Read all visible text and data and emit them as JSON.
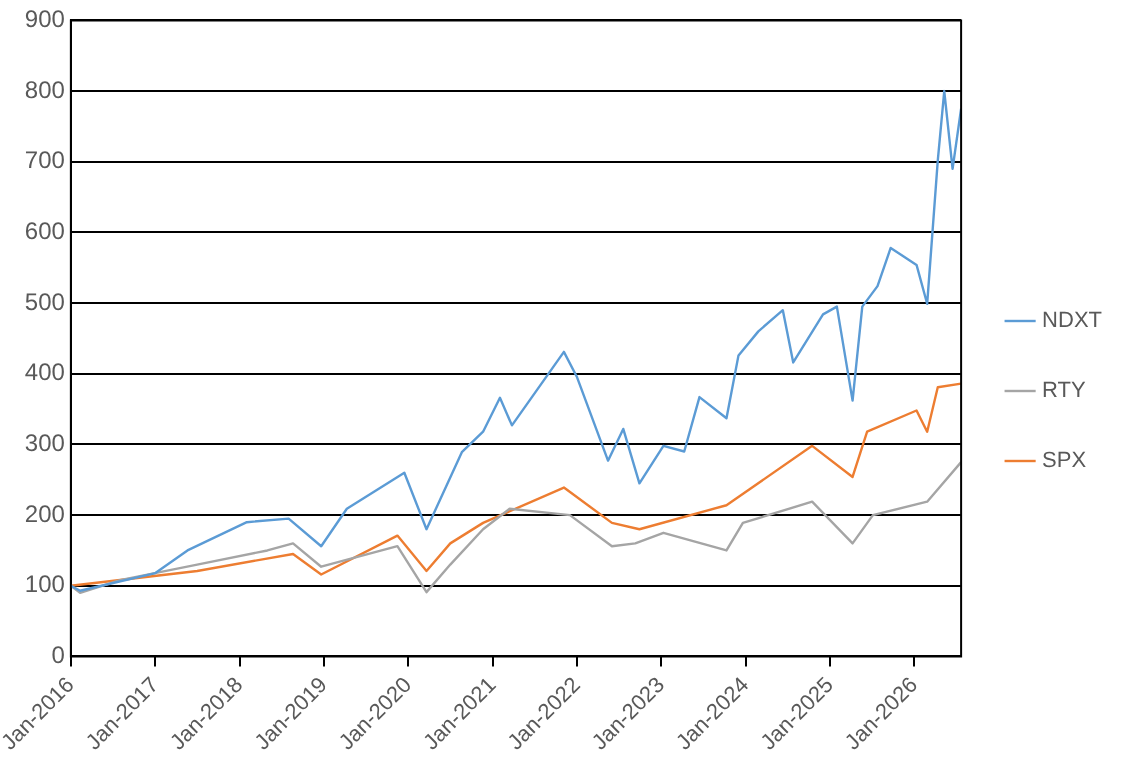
{
  "chart_data": {
    "type": "line",
    "legend": "right",
    "grid": "y",
    "marker": "none",
    "line_style": "solid",
    "xlim": [
      "2016-01-01",
      "2026-07-22"
    ],
    "xticks": [
      {
        "value": "2016-01-01",
        "label": "Jan-2016"
      },
      {
        "value": "2017-01-01",
        "label": "Jan-2017"
      },
      {
        "value": "2018-01-01",
        "label": "Jan-2018"
      },
      {
        "value": "2019-01-01",
        "label": "Jan-2019"
      },
      {
        "value": "2020-01-01",
        "label": "Jan-2020"
      },
      {
        "value": "2021-01-01",
        "label": "Jan-2021"
      },
      {
        "value": "2022-01-01",
        "label": "Jan-2022"
      },
      {
        "value": "2023-01-01",
        "label": "Jan-2023"
      },
      {
        "value": "2024-01-01",
        "label": "Jan-2024"
      },
      {
        "value": "2025-01-01",
        "label": "Jan-2025"
      },
      {
        "value": "2026-01-01",
        "label": "Jan-2026"
      }
    ],
    "ylim": [
      0,
      900
    ],
    "yticks": [
      0,
      100,
      200,
      300,
      400,
      500,
      600,
      700,
      800,
      900
    ],
    "series": [
      {
        "name": "NDXT",
        "color": "#5b9bd5",
        "x": [
          "2016-01-01",
          "2016-02-10",
          "2017-01-01",
          "2017-05-20",
          "2018-02-01",
          "2018-08-01",
          "2018-12-20",
          "2019-04-10",
          "2019-12-15",
          "2020-03-20",
          "2020-08-20",
          "2020-11-20",
          "2021-02-01",
          "2021-03-25",
          "2021-11-05",
          "2022-01-01",
          "2022-05-15",
          "2022-07-20",
          "2022-09-28",
          "2023-01-10",
          "2023-04-10",
          "2023-06-15",
          "2023-10-10",
          "2023-12-01",
          "2024-02-25",
          "2024-06-10",
          "2024-07-25",
          "2024-12-01",
          "2025-01-30",
          "2025-04-08",
          "2025-05-20",
          "2025-07-25",
          "2025-09-20",
          "2026-01-10",
          "2026-02-25",
          "2026-04-12",
          "2026-05-10",
          "2026-06-15",
          "2026-07-22"
        ],
        "values": [
          100,
          93,
          118,
          150,
          190,
          195,
          156,
          209,
          260,
          180,
          289,
          318,
          366,
          327,
          431,
          395,
          277,
          322,
          245,
          298,
          290,
          367,
          337,
          426,
          460,
          490,
          416,
          484,
          495,
          362,
          495,
          524,
          578,
          554,
          499,
          702,
          800,
          690,
          775
        ]
      },
      {
        "name": "RTY",
        "color": "#a5a5a5",
        "x": [
          "2016-01-01",
          "2016-02-10",
          "2016-08-01",
          "2017-07-01",
          "2018-05-01",
          "2018-08-20",
          "2018-12-20",
          "2019-11-15",
          "2020-03-20",
          "2020-07-01",
          "2020-11-20",
          "2021-03-15",
          "2021-12-01",
          "2022-06-01",
          "2022-09-10",
          "2023-01-10",
          "2023-10-10",
          "2023-12-20",
          "2024-10-15",
          "2025-04-08",
          "2025-07-05",
          "2026-02-25",
          "2026-07-22"
        ],
        "values": [
          100,
          90,
          108,
          130,
          150,
          160,
          127,
          156,
          91,
          130,
          180,
          209,
          200,
          156,
          160,
          175,
          150,
          189,
          219,
          160,
          200,
          219,
          275
        ]
      },
      {
        "name": "SPX",
        "color": "#ed7d31",
        "x": [
          "2016-01-01",
          "2017-07-01",
          "2018-08-20",
          "2018-12-20",
          "2019-11-15",
          "2020-03-20",
          "2020-07-01",
          "2020-11-20",
          "2021-11-05",
          "2022-06-01",
          "2022-09-28",
          "2023-10-10",
          "2024-10-15",
          "2025-04-08",
          "2025-06-10",
          "2026-01-10",
          "2026-02-25",
          "2026-04-12",
          "2026-07-22"
        ],
        "values": [
          100,
          121,
          145,
          116,
          171,
          121,
          160,
          189,
          239,
          189,
          180,
          214,
          298,
          254,
          318,
          348,
          318,
          381,
          386
        ]
      }
    ]
  }
}
